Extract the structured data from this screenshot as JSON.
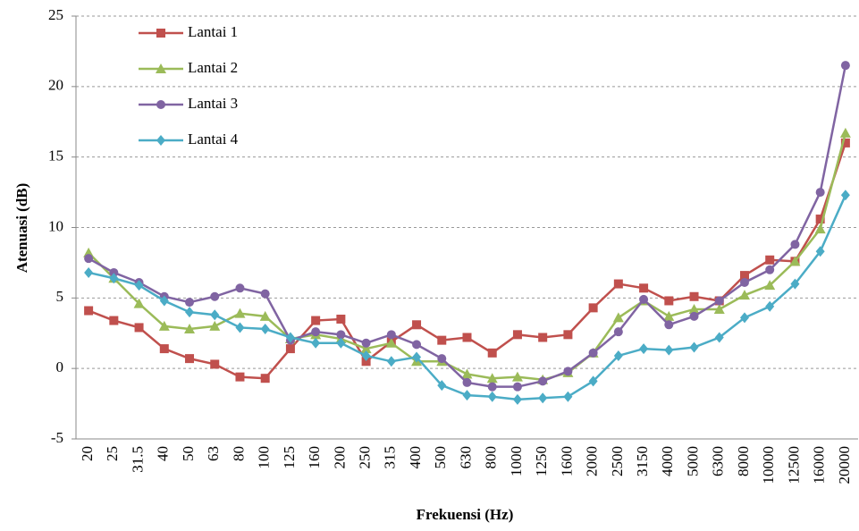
{
  "chart_data": {
    "type": "line",
    "y_label": "Atenuasi (dB)",
    "x_label": "Frekuensi (Hz)",
    "categories": [
      "20",
      "25",
      "31.5",
      "40",
      "50",
      "63",
      "80",
      "100",
      "125",
      "160",
      "200",
      "250",
      "315",
      "400",
      "500",
      "630",
      "800",
      "1000",
      "1250",
      "1600",
      "2000",
      "2500",
      "3150",
      "4000",
      "5000",
      "6300",
      "8000",
      "10000",
      "12500",
      "16000",
      "20000"
    ],
    "series": [
      {
        "name": "Lantai 1",
        "color": "#c0504d",
        "marker": "square",
        "values": [
          4.1,
          3.4,
          2.9,
          1.4,
          0.7,
          0.3,
          -0.6,
          -0.7,
          1.4,
          3.4,
          3.5,
          0.5,
          1.9,
          3.1,
          2.0,
          2.2,
          1.1,
          2.4,
          2.2,
          2.4,
          4.3,
          6.0,
          5.7,
          4.8,
          5.1,
          4.8,
          6.6,
          7.7,
          7.6,
          10.6,
          16.0
        ]
      },
      {
        "name": "Lantai 2",
        "color": "#9bbb59",
        "marker": "triangle",
        "values": [
          8.2,
          6.4,
          4.6,
          3.0,
          2.8,
          3.0,
          3.9,
          3.7,
          2.1,
          2.4,
          2.1,
          1.4,
          1.8,
          0.5,
          0.5,
          -0.4,
          -0.7,
          -0.6,
          -0.8,
          -0.3,
          1.1,
          3.6,
          4.8,
          3.7,
          4.2,
          4.2,
          5.2,
          5.9,
          7.6,
          9.9,
          16.7
        ]
      },
      {
        "name": "Lantai 3",
        "color": "#8064a2",
        "marker": "circle",
        "values": [
          7.8,
          6.8,
          6.1,
          5.1,
          4.7,
          5.1,
          5.7,
          5.3,
          2.0,
          2.6,
          2.4,
          1.8,
          2.4,
          1.7,
          0.7,
          -1.0,
          -1.3,
          -1.3,
          -0.9,
          -0.2,
          1.1,
          2.6,
          4.9,
          3.1,
          3.7,
          4.8,
          6.1,
          7.0,
          8.8,
          12.5,
          21.5
        ]
      },
      {
        "name": "Lantai 4",
        "color": "#4bacc6",
        "marker": "diamond",
        "values": [
          6.8,
          6.4,
          5.9,
          4.8,
          4.0,
          3.8,
          2.9,
          2.8,
          2.2,
          1.8,
          1.8,
          0.9,
          0.5,
          0.8,
          -1.2,
          -1.9,
          -2.0,
          -2.2,
          -2.1,
          -2.0,
          -0.9,
          0.9,
          1.4,
          1.3,
          1.5,
          2.2,
          3.6,
          4.4,
          6.0,
          8.3,
          12.3
        ]
      }
    ],
    "ylim": [
      -5,
      25
    ],
    "yticks": [
      -5,
      0,
      5,
      10,
      15,
      20,
      25
    ],
    "grid": true,
    "legend": "top-left"
  }
}
